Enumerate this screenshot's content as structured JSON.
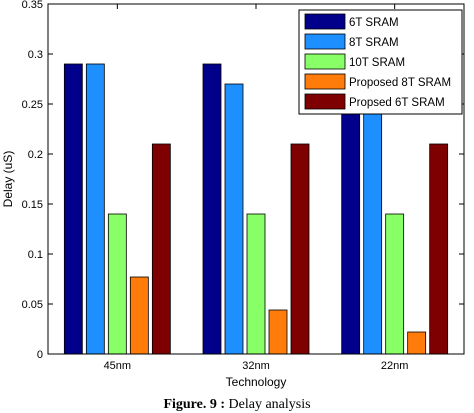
{
  "chart_data": {
    "type": "bar",
    "categories": [
      "45nm",
      "32nm",
      "22nm"
    ],
    "series": [
      {
        "name": "6T SRAM",
        "values": [
          0.29,
          0.29,
          0.28
        ],
        "color": "#00008b"
      },
      {
        "name": "8T SRAM",
        "values": [
          0.29,
          0.27,
          0.26
        ],
        "color": "#1e8fff"
      },
      {
        "name": "10T SRAM",
        "values": [
          0.14,
          0.14,
          0.14
        ],
        "color": "#88ff66"
      },
      {
        "name": "Proposed 8T SRAM",
        "values": [
          0.077,
          0.044,
          0.022
        ],
        "color": "#ff7c0a"
      },
      {
        "name": "Propsed 6T SRAM",
        "values": [
          0.21,
          0.21,
          0.21
        ],
        "color": "#7e0000"
      }
    ],
    "xlabel": "Technology",
    "ylabel": "Delay (uS)",
    "ylim": [
      0,
      0.35
    ],
    "yticks": [
      "0",
      "0.05",
      "0.1",
      "0.15",
      "0.2",
      "0.25",
      "0.3",
      "0.35"
    ],
    "ytick_values": [
      0,
      0.05,
      0.1,
      0.15,
      0.2,
      0.25,
      0.3,
      0.35
    ],
    "grid": false,
    "legend_position": "top-right"
  },
  "caption": {
    "label": "Figure. 9 :",
    "text": " Delay analysis"
  }
}
